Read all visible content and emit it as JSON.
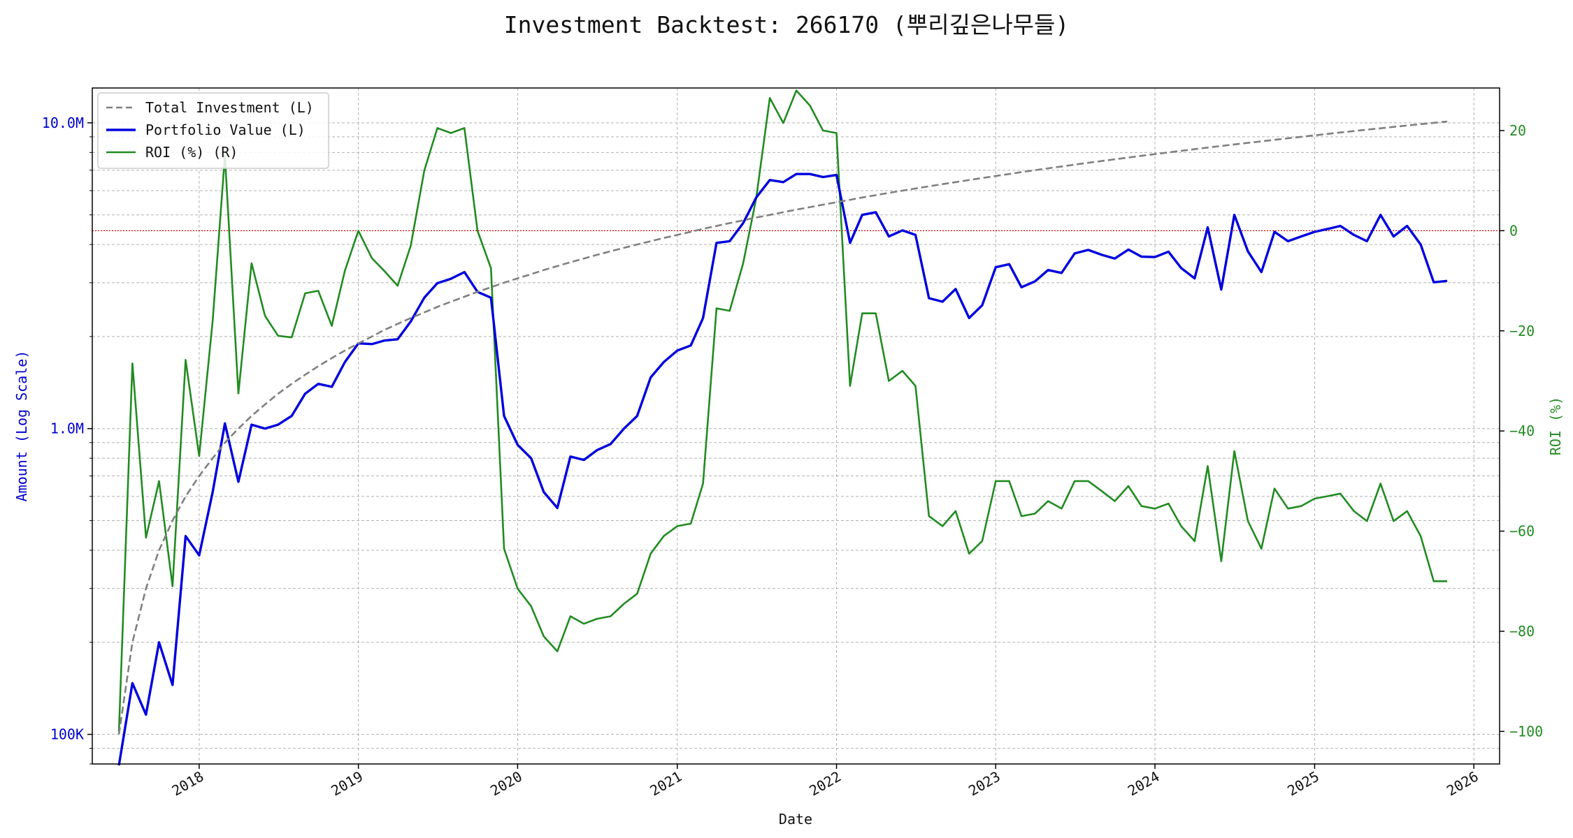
{
  "chart_data": {
    "type": "line",
    "title": "Investment Backtest: 266170 (뿌리깊은나무들)",
    "xlabel": "Date",
    "ylabel_left": "Amount (Log Scale)",
    "ylabel_right": "ROI (%)",
    "left_scale": "log",
    "left_ylim": [
      80000,
      13000000
    ],
    "right_ylim": [
      -106.5,
      28.5
    ],
    "xlim": [
      "2017-05-01",
      "2026-03-01"
    ],
    "x_ticks": [
      "2018",
      "2019",
      "2020",
      "2021",
      "2022",
      "2023",
      "2024",
      "2025",
      "2026"
    ],
    "left_ticks": [
      {
        "value": 100000,
        "label": "100K"
      },
      {
        "value": 1000000,
        "label": "1.0M"
      },
      {
        "value": 10000000,
        "label": "10.0M"
      }
    ],
    "right_ticks": [
      {
        "value": -100,
        "label": "−100"
      },
      {
        "value": -80,
        "label": "−80"
      },
      {
        "value": -60,
        "label": "−60"
      },
      {
        "value": -40,
        "label": "−40"
      },
      {
        "value": -20,
        "label": "−20"
      },
      {
        "value": 0,
        "label": "0"
      },
      {
        "value": 20,
        "label": "20"
      }
    ],
    "zero_line": {
      "axis": "right",
      "value": 0,
      "color": "#dd0000"
    },
    "grid": true,
    "legend_position": "upper-left",
    "dates": [
      "2017-07",
      "2017-08",
      "2017-09",
      "2017-10",
      "2017-11",
      "2017-12",
      "2018-01",
      "2018-02",
      "2018-03",
      "2018-04",
      "2018-05",
      "2018-06",
      "2018-07",
      "2018-08",
      "2018-09",
      "2018-10",
      "2018-11",
      "2018-12",
      "2019-01",
      "2019-02",
      "2019-03",
      "2019-04",
      "2019-05",
      "2019-06",
      "2019-07",
      "2019-08",
      "2019-09",
      "2019-10",
      "2019-11",
      "2019-12",
      "2020-01",
      "2020-02",
      "2020-03",
      "2020-04",
      "2020-05",
      "2020-06",
      "2020-07",
      "2020-08",
      "2020-09",
      "2020-10",
      "2020-11",
      "2020-12",
      "2021-01",
      "2021-02",
      "2021-03",
      "2021-04",
      "2021-05",
      "2021-06",
      "2021-07",
      "2021-08",
      "2021-09",
      "2021-10",
      "2021-11",
      "2021-12",
      "2022-01",
      "2022-02",
      "2022-03",
      "2022-04",
      "2022-05",
      "2022-06",
      "2022-07",
      "2022-08",
      "2022-09",
      "2022-10",
      "2022-11",
      "2022-12",
      "2023-01",
      "2023-02",
      "2023-03",
      "2023-04",
      "2023-05",
      "2023-06",
      "2023-07",
      "2023-08",
      "2023-09",
      "2023-10",
      "2023-11",
      "2023-12",
      "2024-01",
      "2024-02",
      "2024-03",
      "2024-04",
      "2024-05",
      "2024-06",
      "2024-07",
      "2024-08",
      "2024-09",
      "2024-10",
      "2024-11",
      "2024-12",
      "2025-01",
      "2025-02",
      "2025-03",
      "2025-04",
      "2025-05",
      "2025-06",
      "2025-07",
      "2025-08",
      "2025-09",
      "2025-10",
      "2025-11"
    ],
    "series": [
      {
        "name": "Total Investment (L)",
        "axis": "left",
        "color": "#808080",
        "style": "dashed",
        "values": [
          100000,
          200000,
          300000,
          400000,
          500000,
          600000,
          700000,
          800000,
          900000,
          1000000,
          1100000,
          1200000,
          1300000,
          1400000,
          1500000,
          1600000,
          1700000,
          1800000,
          1900000,
          2000000,
          2100000,
          2200000,
          2300000,
          2400000,
          2500000,
          2600000,
          2700000,
          2800000,
          2900000,
          3000000,
          3100000,
          3200000,
          3300000,
          3400000,
          3500000,
          3600000,
          3700000,
          3800000,
          3900000,
          4000000,
          4100000,
          4200000,
          4300000,
          4400000,
          4500000,
          4600000,
          4700000,
          4800000,
          4900000,
          5000000,
          5100000,
          5200000,
          5300000,
          5400000,
          5500000,
          5600000,
          5700000,
          5800000,
          5900000,
          6000000,
          6100000,
          6200000,
          6300000,
          6400000,
          6500000,
          6600000,
          6700000,
          6800000,
          6900000,
          7000000,
          7100000,
          7200000,
          7300000,
          7400000,
          7500000,
          7600000,
          7700000,
          7800000,
          7900000,
          8000000,
          8100000,
          8200000,
          8300000,
          8400000,
          8500000,
          8600000,
          8700000,
          8800000,
          8900000,
          9000000,
          9100000,
          9200000,
          9300000,
          9400000,
          9500000,
          9600000,
          9700000,
          9800000,
          9900000,
          10000000,
          10100000
        ]
      },
      {
        "name": "Portfolio Value (L)",
        "axis": "left",
        "color": "#0000dd",
        "style": "solid",
        "values": [
          0,
          147000,
          116000,
          200000,
          145000,
          445000,
          385000,
          620000,
          1040000,
          670000,
          1030000,
          1000000,
          1030000,
          1100000,
          1300000,
          1400000,
          1370000,
          1650000,
          1900000,
          1890000,
          1940000,
          1960000,
          2240000,
          2680000,
          2990000,
          3090000,
          3250000,
          2800000,
          2680000,
          1100000,
          885000,
          800000,
          620000,
          550000,
          810000,
          790000,
          850000,
          890000,
          1000000,
          1100000,
          1470000,
          1650000,
          1800000,
          1870000,
          2300000,
          4050000,
          4100000,
          4700000,
          5700000,
          6500000,
          6400000,
          6800000,
          6800000,
          6650000,
          6750000,
          4050000,
          5000000,
          5100000,
          4250000,
          4450000,
          4300000,
          2670000,
          2600000,
          2860000,
          2300000,
          2530000,
          3370000,
          3450000,
          2900000,
          3030000,
          3300000,
          3230000,
          3740000,
          3840000,
          3700000,
          3600000,
          3850000,
          3650000,
          3640000,
          3790000,
          3350000,
          3100000,
          4550000,
          2850000,
          5000000,
          3800000,
          3250000,
          4400000,
          4100000,
          4250000,
          4400000,
          4500000,
          4600000,
          4300000,
          4100000,
          5000000,
          4250000,
          4600000,
          4000000,
          3010000,
          3040000
        ]
      },
      {
        "name": "ROI (%) (R)",
        "axis": "right",
        "color": "#228b22",
        "style": "solid",
        "values": [
          -100,
          -26.5,
          -61.3,
          -50,
          -71,
          -25.8,
          -45,
          -18,
          15,
          -32.5,
          -6.5,
          -17,
          -21,
          -21.3,
          -12.5,
          -12,
          -19,
          -8,
          0,
          -5.5,
          -8,
          -11,
          -3,
          12,
          20.5,
          19.5,
          20.5,
          0,
          -7.5,
          -63.5,
          -71.5,
          -75,
          -81,
          -84,
          -77,
          -78.5,
          -77.5,
          -77,
          -74.5,
          -72.5,
          -64.5,
          -61,
          -59,
          -58.5,
          -50.5,
          -15.5,
          -16,
          -6.5,
          6.5,
          26.5,
          21.5,
          28,
          25,
          20,
          19.5,
          -31,
          -16.5,
          -16.5,
          -30,
          -28,
          -31,
          -57,
          -59,
          -56,
          -64.5,
          -62,
          -50,
          -50,
          -57,
          -56.5,
          -54,
          -55.5,
          -50,
          -50,
          -52,
          -54,
          -51,
          -55,
          -55.5,
          -54.5,
          -59,
          -62,
          -47,
          -66,
          -44,
          -58,
          -63.5,
          -51.5,
          -55.5,
          -55,
          -53.5,
          -53,
          -52.5,
          -56,
          -58,
          -50.5,
          -58,
          -56,
          -61,
          -70,
          -70
        ]
      }
    ]
  }
}
